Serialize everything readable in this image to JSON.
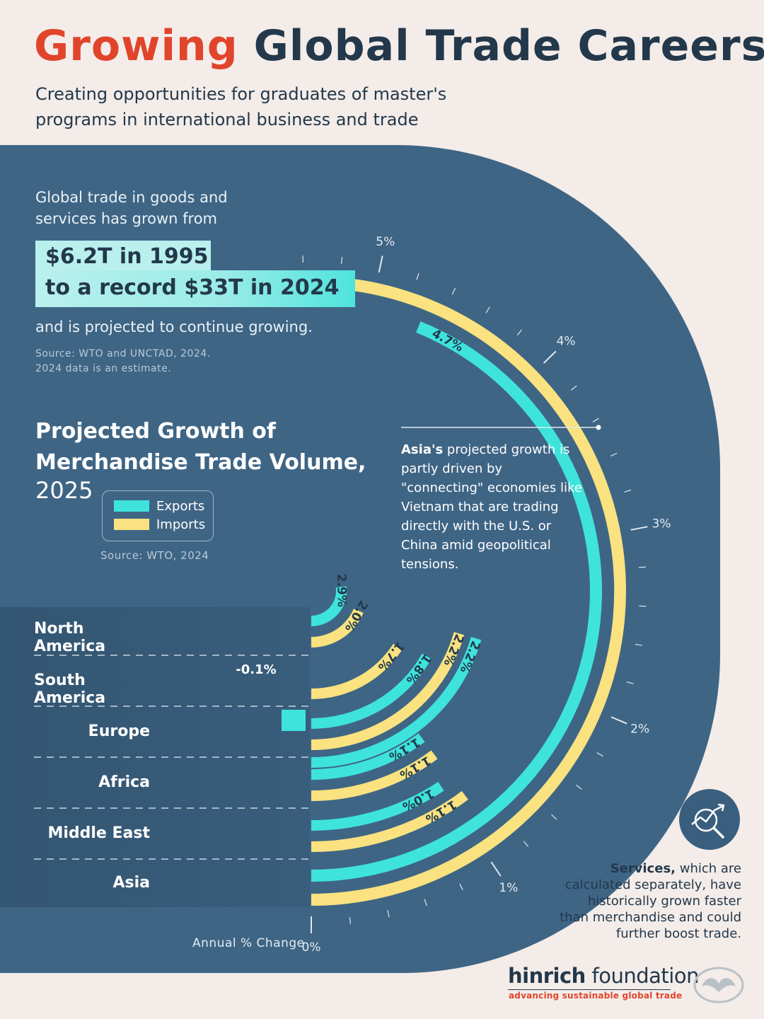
{
  "title": {
    "part1": "Growing",
    "part2": "Global Trade Careers"
  },
  "subtitle": {
    "line1": "Creating opportunities for graduates of master's",
    "line2": "programs in international business and trade"
  },
  "intro": {
    "text": "Global trade in goods and services has grown from",
    "highlight1": "$6.2T in 1995",
    "highlight2": "to a record $33T in 2024",
    "continuation": "and is projected to continue growing.",
    "source_line1": "Source: WTO and UNCTAD, 2024.",
    "source_line2": "2024 data is an estimate."
  },
  "chart_title": {
    "line1": "Projected Growth of",
    "line2": "Merchandise Trade Volume,",
    "year": "2025"
  },
  "legend": {
    "exports": "Exports",
    "imports": "Imports"
  },
  "chart_source": "Source: WTO, 2024",
  "colors": {
    "background": "#f3ece8",
    "panel": "#3f6585",
    "exports": "#3ee3dc",
    "imports": "#f9e27f",
    "accent": "#e0452c",
    "navy": "#23384b"
  },
  "asia_note": {
    "bold": "Asia's",
    "text": " projected growth is partly driven by \"connecting\" economies like Vietnam that are trading directly with the U.S. or China amid geopolitical tensions."
  },
  "services_note": {
    "bold": "Services,",
    "text": " which are calculated separately, have historically grown faster than merchandise and could further boost trade."
  },
  "icons": {
    "services": "trend-magnifier-icon",
    "brand_logo": "hinrich-foundation-logo-icon"
  },
  "brand": {
    "name_bold": "hinrich",
    "name_rest": " foundation",
    "tagline": "advancing sustainable global trade"
  },
  "chart_data": {
    "type": "radial bar",
    "title": "Projected Growth of Merchandise Trade Volume, 2025",
    "axis_label": "Annual % Change",
    "axis_range": [
      0,
      6
    ],
    "axis_ticks": [
      "0%",
      "1%",
      "2%",
      "3%",
      "4%",
      "5%"
    ],
    "categories": [
      "North America",
      "South America",
      "Europe",
      "Africa",
      "Middle East",
      "Asia"
    ],
    "series": [
      {
        "name": "Exports",
        "values": [
          2.9,
          -0.1,
          1.8,
          1.1,
          1.0,
          4.7
        ]
      },
      {
        "name": "Imports",
        "values": [
          2.0,
          1.7,
          2.2,
          1.1,
          1.1,
          5.4
        ]
      }
    ],
    "value_labels": {
      "exports": [
        "2.9%",
        "-0.1%",
        "1.8%",
        "1.1%",
        "1.0%",
        "4.7%"
      ],
      "imports": [
        "2.0%",
        "1.7%",
        "2.2%",
        "1.1%",
        "1.1%",
        "5.4%"
      ],
      "extra": "2.2%"
    }
  }
}
